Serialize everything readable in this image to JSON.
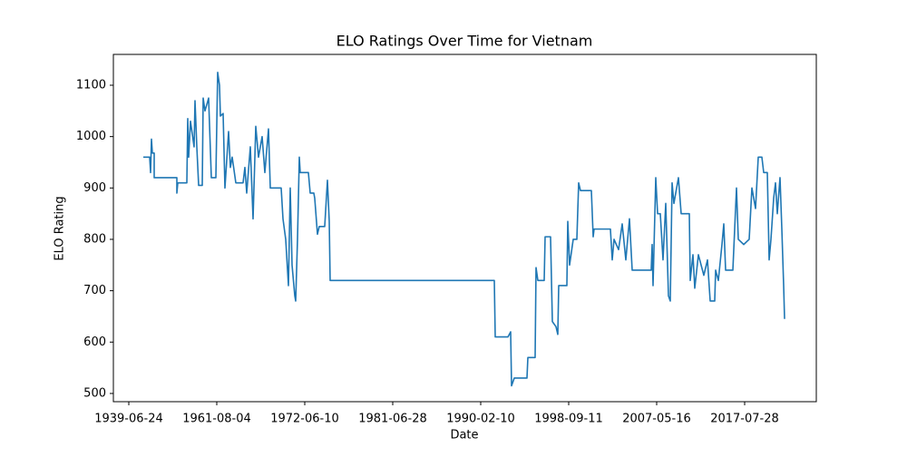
{
  "chart_data": {
    "type": "line",
    "title": "ELO Ratings Over Time for Vietnam",
    "x_label": "Date",
    "y_label": "ELO Rating",
    "color": "#1f77b4",
    "x": [
      16,
      23,
      24,
      25,
      26,
      28,
      28,
      53,
      53,
      54,
      64,
      65,
      66,
      68,
      72,
      73,
      75,
      77,
      81,
      82,
      84,
      88,
      91,
      96,
      98,
      100,
      101,
      104,
      106,
      110,
      112,
      114,
      118,
      126,
      128,
      130,
      134,
      137,
      140,
      143,
      147,
      150,
      154,
      156,
      168,
      170,
      173,
      176,
      178,
      180,
      183,
      184,
      186,
      188,
      189,
      198,
      200,
      204,
      205,
      208,
      210,
      216,
      219,
      221,
      222,
      403,
      404,
      418,
      421,
      422,
      425,
      439,
      440,
      448,
      449,
      451,
      458,
      459,
      465,
      467,
      471,
      473,
      474,
      483,
      484,
      486,
      490,
      494,
      496,
      498,
      510,
      512,
      513,
      531,
      533,
      535,
      540,
      544,
      548,
      552,
      555,
      576,
      577,
      578,
      581,
      583,
      586,
      589,
      592,
      595,
      597,
      599,
      601,
      606,
      609,
      618,
      619,
      622,
      624,
      628,
      634,
      638,
      641,
      646,
      647,
      650,
      654,
      656,
      658,
      666,
      670,
      672,
      678,
      684,
      687,
      691,
      694,
      698,
      700,
      704,
      706,
      708,
      711,
      713,
      715,
      718,
      720,
      722,
      723
    ],
    "values": [
      960,
      960,
      930,
      995,
      968,
      968,
      920,
      920,
      890,
      910,
      910,
      1035,
      960,
      1030,
      980,
      1070,
      980,
      905,
      905,
      1075,
      1050,
      1075,
      920,
      920,
      1125,
      1100,
      1040,
      1045,
      900,
      1010,
      940,
      960,
      910,
      910,
      940,
      890,
      980,
      840,
      1020,
      960,
      1000,
      930,
      1015,
      900,
      900,
      840,
      800,
      710,
      900,
      750,
      690,
      680,
      800,
      960,
      930,
      930,
      890,
      890,
      880,
      810,
      825,
      825,
      915,
      835,
      720,
      720,
      610,
      610,
      620,
      515,
      530,
      530,
      570,
      570,
      745,
      720,
      720,
      805,
      805,
      640,
      630,
      615,
      710,
      710,
      835,
      750,
      800,
      800,
      910,
      895,
      895,
      805,
      820,
      820,
      760,
      800,
      780,
      830,
      760,
      840,
      740,
      740,
      790,
      710,
      920,
      850,
      850,
      760,
      870,
      690,
      680,
      910,
      870,
      920,
      850,
      850,
      720,
      770,
      705,
      770,
      730,
      760,
      680,
      680,
      740,
      720,
      790,
      830,
      740,
      740,
      900,
      800,
      790,
      800,
      900,
      860,
      960,
      960,
      930,
      930,
      760,
      800,
      880,
      910,
      850,
      920,
      820,
      710,
      645
    ],
    "xlim": [
      -17,
      758
    ],
    "xticks": [
      {
        "value": 0,
        "label": "1939-06-24"
      },
      {
        "value": 97,
        "label": "1961-08-04"
      },
      {
        "value": 194,
        "label": "1972-06-10"
      },
      {
        "value": 291,
        "label": "1981-06-28"
      },
      {
        "value": 388,
        "label": "1990-02-10"
      },
      {
        "value": 485,
        "label": "1998-09-11"
      },
      {
        "value": 582,
        "label": "2007-05-16"
      },
      {
        "value": 679,
        "label": "2017-07-28"
      }
    ],
    "ylim": [
      484,
      1160
    ],
    "yticks": [
      500,
      600,
      700,
      800,
      900,
      1000,
      1100
    ]
  }
}
